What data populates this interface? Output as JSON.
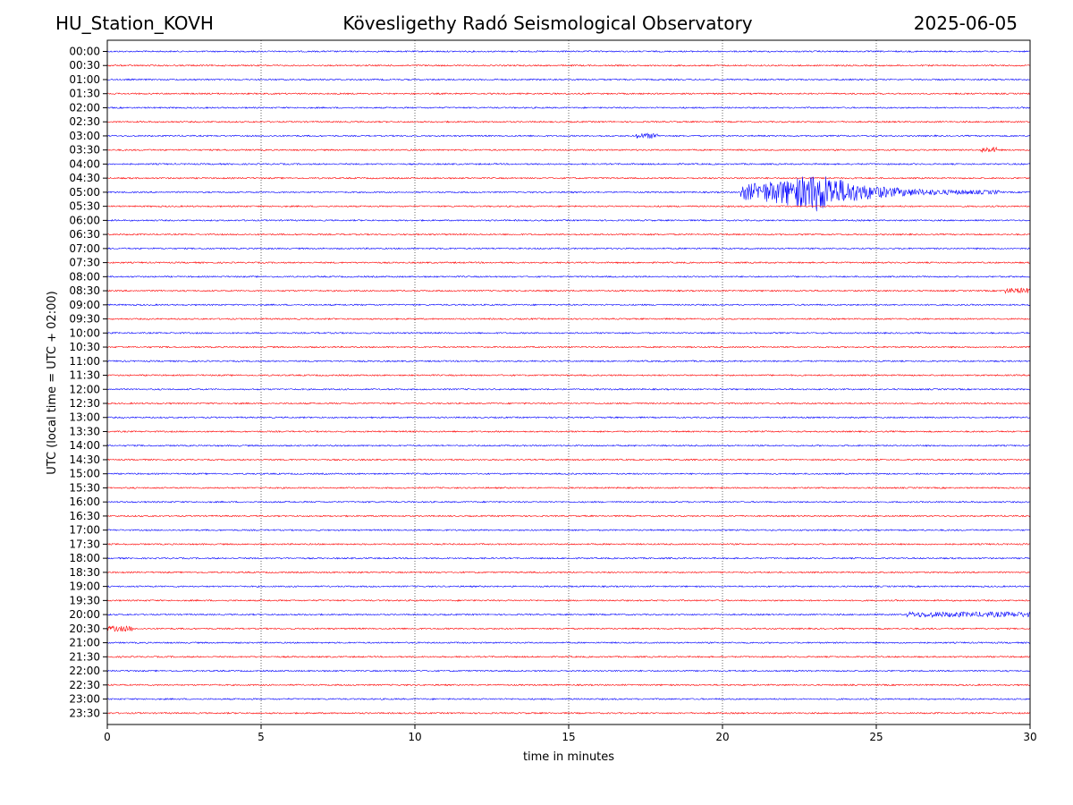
{
  "header": {
    "station": "HU_Station_KOVH",
    "title": "Kövesligethy Radó Seismological Observatory",
    "date": "2025-06-05"
  },
  "chart_data": {
    "type": "line",
    "title": "Kövesligethy Radó Seismological Observatory",
    "xlabel": "time in minutes",
    "ylabel": "UTC (local time = UTC + 02:00)",
    "xlim": [
      0,
      30
    ],
    "xticks": [
      0,
      5,
      10,
      15,
      20,
      25,
      30
    ],
    "grid": "vertical dotted lines at 5-minute intervals",
    "colors": {
      "even_rows": "#0000ff",
      "odd_rows": "#ff0000"
    },
    "rows": [
      "00:00",
      "00:30",
      "01:00",
      "01:30",
      "02:00",
      "02:30",
      "03:00",
      "03:30",
      "04:00",
      "04:30",
      "05:00",
      "05:30",
      "06:00",
      "06:30",
      "07:00",
      "07:30",
      "08:00",
      "08:30",
      "09:00",
      "09:30",
      "10:00",
      "10:30",
      "11:00",
      "11:30",
      "12:00",
      "12:30",
      "13:00",
      "13:30",
      "14:00",
      "14:30",
      "15:00",
      "15:30",
      "16:00",
      "16:30",
      "17:00",
      "17:30",
      "18:00",
      "18:30",
      "19:00",
      "19:30",
      "20:00",
      "20:30",
      "21:00",
      "21:30",
      "22:00",
      "22:30",
      "23:00",
      "23:30"
    ],
    "events": [
      {
        "row": "05:00",
        "start_min": 20.6,
        "peak_min": 23.1,
        "end_min": 29.0,
        "description": "large amplitude earthquake signal"
      },
      {
        "row": "03:00",
        "start_min": 17.2,
        "end_min": 17.9
      },
      {
        "row": "20:30",
        "start_min": 0.0,
        "end_min": 0.8
      },
      {
        "row": "20:00",
        "start_min": 26.0,
        "end_min": 30.0
      },
      {
        "row": "08:30",
        "start_min": 29.2,
        "end_min": 30.0
      },
      {
        "row": "03:30",
        "start_min": 28.4,
        "end_min": 28.9
      }
    ]
  }
}
